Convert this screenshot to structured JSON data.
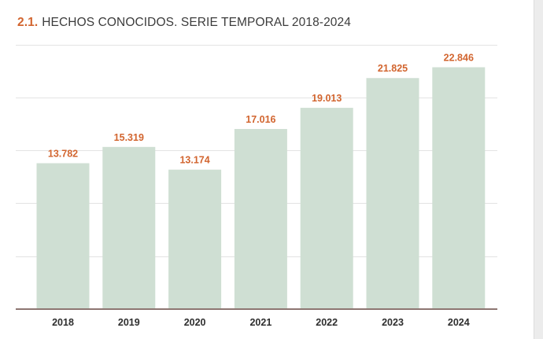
{
  "header": {
    "number": "2.1.",
    "title": "HECHOS CONOCIDOS. SERIE TEMPORAL 2018-2024"
  },
  "colors": {
    "accent": "#d2652f",
    "bar": "#cfdfd3",
    "baseline": "#8d7672",
    "grid": "#e3e3e3"
  },
  "chart_data": {
    "type": "bar",
    "title": "HECHOS CONOCIDOS. SERIE TEMPORAL 2018-2024",
    "categories": [
      "2018",
      "2019",
      "2020",
      "2021",
      "2022",
      "2023",
      "2024"
    ],
    "values": [
      13782,
      15319,
      13174,
      17016,
      19013,
      21825,
      22846
    ],
    "value_labels": [
      "13.782",
      "15.319",
      "13.174",
      "17.016",
      "19.013",
      "21.825",
      "22.846"
    ],
    "xlabel": "",
    "ylabel": "",
    "ylim": [
      0,
      25000
    ],
    "grid": true,
    "legend": "none"
  }
}
